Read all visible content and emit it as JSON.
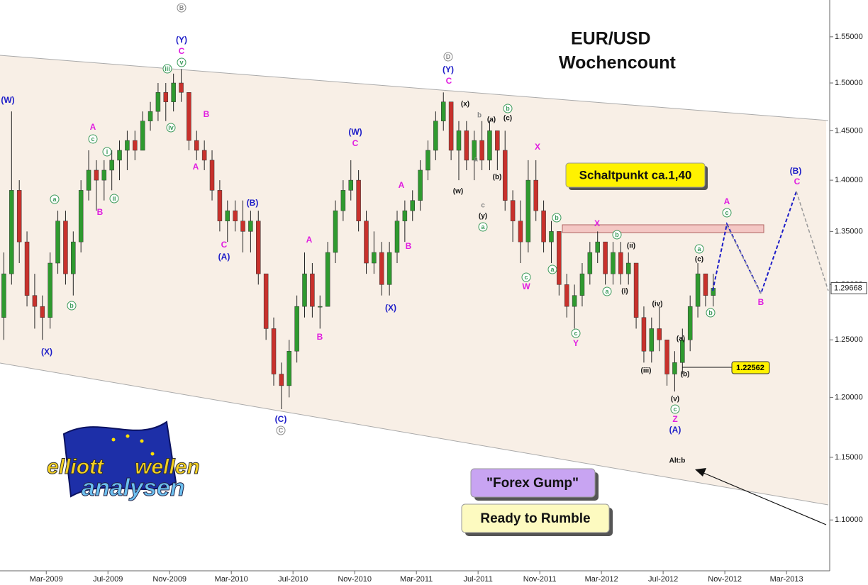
{
  "chart_data": {
    "type": "candlestick",
    "title": "EUR/USD",
    "subtitle": "Wochencount",
    "log_scale": true,
    "up_color": "#2f9a2f",
    "down_color": "#c8312c",
    "x": [
      0.25,
      0.75,
      1.25,
      1.75,
      2.25,
      2.75,
      3.25,
      3.75,
      4.25,
      4.75,
      5.25,
      5.75,
      6.25,
      6.75,
      7.25,
      7.75,
      8.25,
      8.75,
      9.25,
      9.75,
      10.25,
      10.75,
      11.25,
      11.75,
      12.25,
      12.75,
      13.25,
      13.75,
      14.25,
      14.75,
      15.25,
      15.75,
      16.25,
      16.75,
      17.25,
      17.75,
      18.25,
      18.75,
      19.25,
      19.75,
      20.25,
      20.75,
      21.25,
      21.75,
      22.25,
      22.75,
      23.25,
      23.75,
      24.25,
      24.75,
      25.25,
      25.75,
      26.25,
      26.75,
      27.25,
      27.75,
      28.25,
      28.75,
      29.25,
      29.75,
      30.25,
      30.75,
      31.25,
      31.75,
      32.25,
      32.75,
      33.25,
      33.75,
      34.25,
      34.75,
      35.25,
      35.75,
      36.25,
      36.75,
      37.25,
      37.75,
      38.25,
      38.75,
      39.25,
      39.75,
      40.25,
      40.75,
      41.25,
      41.75,
      42.25,
      42.75,
      43.25,
      43.75,
      44.25,
      44.75,
      45.25,
      45.75,
      46.25
    ],
    "open": [
      1.27,
      1.31,
      1.39,
      1.34,
      1.29,
      1.28,
      1.27,
      1.32,
      1.36,
      1.31,
      1.34,
      1.39,
      1.41,
      1.4,
      1.41,
      1.42,
      1.43,
      1.44,
      1.43,
      1.46,
      1.47,
      1.49,
      1.48,
      1.5,
      1.49,
      1.44,
      1.43,
      1.42,
      1.39,
      1.36,
      1.37,
      1.36,
      1.35,
      1.36,
      1.31,
      1.26,
      1.22,
      1.21,
      1.24,
      1.28,
      1.31,
      1.28,
      1.28,
      1.33,
      1.37,
      1.39,
      1.4,
      1.36,
      1.32,
      1.33,
      1.3,
      1.33,
      1.36,
      1.37,
      1.38,
      1.41,
      1.43,
      1.46,
      1.48,
      1.43,
      1.45,
      1.42,
      1.44,
      1.42,
      1.45,
      1.43,
      1.38,
      1.36,
      1.34,
      1.4,
      1.37,
      1.34,
      1.35,
      1.3,
      1.28,
      1.29,
      1.31,
      1.33,
      1.34,
      1.31,
      1.33,
      1.31,
      1.32,
      1.27,
      1.24,
      1.26,
      1.25,
      1.22,
      1.23,
      1.25,
      1.28,
      1.31,
      1.29
    ],
    "high": [
      1.33,
      1.47,
      1.4,
      1.35,
      1.31,
      1.29,
      1.33,
      1.37,
      1.37,
      1.35,
      1.4,
      1.43,
      1.42,
      1.42,
      1.43,
      1.44,
      1.45,
      1.45,
      1.47,
      1.48,
      1.5,
      1.5,
      1.51,
      1.515,
      1.49,
      1.45,
      1.44,
      1.43,
      1.4,
      1.38,
      1.38,
      1.38,
      1.37,
      1.37,
      1.31,
      1.27,
      1.23,
      1.25,
      1.29,
      1.33,
      1.32,
      1.29,
      1.34,
      1.38,
      1.4,
      1.42,
      1.41,
      1.37,
      1.35,
      1.34,
      1.34,
      1.37,
      1.38,
      1.39,
      1.42,
      1.44,
      1.47,
      1.49,
      1.48,
      1.46,
      1.46,
      1.45,
      1.46,
      1.46,
      1.45,
      1.45,
      1.39,
      1.38,
      1.42,
      1.42,
      1.38,
      1.36,
      1.35,
      1.31,
      1.3,
      1.32,
      1.34,
      1.35,
      1.34,
      1.34,
      1.34,
      1.33,
      1.32,
      1.28,
      1.27,
      1.28,
      1.25,
      1.24,
      1.26,
      1.29,
      1.32,
      1.31,
      1.31
    ],
    "low": [
      1.25,
      1.3,
      1.32,
      1.28,
      1.26,
      1.25,
      1.26,
      1.31,
      1.3,
      1.29,
      1.33,
      1.38,
      1.37,
      1.38,
      1.39,
      1.4,
      1.41,
      1.42,
      1.43,
      1.45,
      1.46,
      1.46,
      1.47,
      1.48,
      1.43,
      1.42,
      1.41,
      1.38,
      1.35,
      1.34,
      1.35,
      1.33,
      1.33,
      1.3,
      1.25,
      1.21,
      1.19,
      1.2,
      1.23,
      1.27,
      1.27,
      1.26,
      1.28,
      1.32,
      1.36,
      1.38,
      1.35,
      1.31,
      1.31,
      1.29,
      1.29,
      1.32,
      1.34,
      1.36,
      1.37,
      1.4,
      1.42,
      1.45,
      1.42,
      1.4,
      1.41,
      1.4,
      1.41,
      1.41,
      1.41,
      1.37,
      1.34,
      1.32,
      1.33,
      1.36,
      1.33,
      1.32,
      1.29,
      1.27,
      1.26,
      1.28,
      1.3,
      1.32,
      1.3,
      1.3,
      1.3,
      1.3,
      1.26,
      1.23,
      1.23,
      1.24,
      1.21,
      1.205,
      1.22,
      1.24,
      1.27,
      1.28,
      1.28
    ],
    "close": [
      1.31,
      1.39,
      1.34,
      1.29,
      1.28,
      1.27,
      1.32,
      1.36,
      1.31,
      1.34,
      1.39,
      1.41,
      1.4,
      1.41,
      1.42,
      1.43,
      1.44,
      1.43,
      1.46,
      1.47,
      1.49,
      1.48,
      1.5,
      1.49,
      1.44,
      1.43,
      1.42,
      1.39,
      1.36,
      1.37,
      1.36,
      1.35,
      1.36,
      1.31,
      1.26,
      1.22,
      1.21,
      1.24,
      1.28,
      1.31,
      1.28,
      1.28,
      1.33,
      1.37,
      1.39,
      1.4,
      1.36,
      1.32,
      1.33,
      1.3,
      1.33,
      1.36,
      1.37,
      1.38,
      1.41,
      1.43,
      1.46,
      1.48,
      1.43,
      1.45,
      1.42,
      1.44,
      1.42,
      1.45,
      1.43,
      1.38,
      1.36,
      1.34,
      1.4,
      1.37,
      1.34,
      1.35,
      1.3,
      1.28,
      1.29,
      1.31,
      1.33,
      1.34,
      1.31,
      1.33,
      1.31,
      1.32,
      1.27,
      1.24,
      1.26,
      1.25,
      1.22,
      1.23,
      1.25,
      1.28,
      1.31,
      1.29,
      1.29668
    ],
    "last_price": 1.29668,
    "xlim": [
      0,
      53.8
    ],
    "xticks": [
      {
        "value": 3,
        "label": "Mar-2009"
      },
      {
        "value": 7,
        "label": "Jul-2009"
      },
      {
        "value": 11,
        "label": "Nov-2009"
      },
      {
        "value": 15,
        "label": "Mar-2010"
      },
      {
        "value": 19,
        "label": "Jul-2010"
      },
      {
        "value": 23,
        "label": "Nov-2010"
      },
      {
        "value": 27,
        "label": "Mar-2011"
      },
      {
        "value": 31,
        "label": "Jul-2011"
      },
      {
        "value": 35,
        "label": "Nov-2011"
      },
      {
        "value": 39,
        "label": "Mar-2012"
      },
      {
        "value": 43,
        "label": "Jul-2012"
      },
      {
        "value": 47,
        "label": "Nov-2012"
      },
      {
        "value": 51,
        "label": "Mar-2013"
      }
    ],
    "ylim": [
      1.061,
      1.591
    ],
    "yticks": [
      {
        "value": 1.1,
        "label": "1.10000"
      },
      {
        "value": 1.15,
        "label": "1.15000"
      },
      {
        "value": 1.2,
        "label": "1.20000"
      },
      {
        "value": 1.25,
        "label": "1.25000"
      },
      {
        "value": 1.3,
        "label": "1.30000"
      },
      {
        "value": 1.35,
        "label": "1.35000"
      },
      {
        "value": 1.4,
        "label": "1.40000"
      },
      {
        "value": 1.45,
        "label": "1.45000"
      },
      {
        "value": 1.5,
        "label": "1.50000"
      },
      {
        "value": 1.55,
        "label": "1.55000"
      }
    ]
  },
  "wave_labels": [
    {
      "text": "(W)",
      "color": "#1c1cc8"
    },
    {
      "text": "(X)",
      "color": "#1c1cc8"
    },
    {
      "text": "a",
      "color": "#3a9a5a",
      "circled": true
    },
    {
      "text": "b",
      "color": "#3a9a5a",
      "circled": true
    },
    {
      "text": "A",
      "color": "#e01ee0"
    },
    {
      "text": "c",
      "color": "#3a9a5a",
      "circled": true
    },
    {
      "text": "i",
      "color": "#3a9a5a",
      "circled": true
    },
    {
      "text": "ii",
      "color": "#3a9a5a",
      "circled": true
    },
    {
      "text": "B",
      "color": "#e01ee0"
    },
    {
      "text": "B",
      "color": "#8a8a8a",
      "circled": true
    },
    {
      "text": "(Y)",
      "color": "#1c1cc8"
    },
    {
      "text": "C",
      "color": "#e01ee0"
    },
    {
      "text": "v",
      "color": "#3a9a5a",
      "circled": true
    },
    {
      "text": "iii",
      "color": "#3a9a5a",
      "circled": true
    },
    {
      "text": "iv",
      "color": "#3a9a5a",
      "circled": true
    },
    {
      "text": "B",
      "color": "#e01ee0"
    },
    {
      "text": "A",
      "color": "#e01ee0"
    },
    {
      "text": "(B)",
      "color": "#1c1cc8"
    },
    {
      "text": "C",
      "color": "#e01ee0"
    },
    {
      "text": "(A)",
      "color": "#1c1cc8"
    },
    {
      "text": "(C)",
      "color": "#1c1cc8"
    },
    {
      "text": "C",
      "color": "#8a8a8a",
      "circled": true
    },
    {
      "text": "A",
      "color": "#e01ee0"
    },
    {
      "text": "B",
      "color": "#e01ee0"
    },
    {
      "text": "(W)",
      "color": "#1c1cc8"
    },
    {
      "text": "C",
      "color": "#e01ee0"
    },
    {
      "text": "A",
      "color": "#e01ee0"
    },
    {
      "text": "B",
      "color": "#e01ee0"
    },
    {
      "text": "(X)",
      "color": "#1c1cc8"
    },
    {
      "text": "D",
      "color": "#8a8a8a",
      "circled": true
    },
    {
      "text": "(Y)",
      "color": "#1c1cc8"
    },
    {
      "text": "C",
      "color": "#e01ee0"
    },
    {
      "text": "(x)",
      "color": "#111111"
    },
    {
      "text": "b",
      "color": "#8a8a8a"
    },
    {
      "text": "(a)",
      "color": "#111111"
    },
    {
      "text": "b",
      "color": "#3a9a5a",
      "circled": true
    },
    {
      "text": "(c)",
      "color": "#111111"
    },
    {
      "text": "a",
      "color": "#8a8a8a"
    },
    {
      "text": "(b)",
      "color": "#111111"
    },
    {
      "text": "(w)",
      "color": "#111111"
    },
    {
      "text": "c",
      "color": "#8a8a8a"
    },
    {
      "text": "(y)",
      "color": "#111111"
    },
    {
      "text": "a",
      "color": "#3a9a5a",
      "circled": true
    },
    {
      "text": "X",
      "color": "#e01ee0"
    },
    {
      "text": "b",
      "color": "#3a9a5a",
      "circled": true
    },
    {
      "text": "c",
      "color": "#3a9a5a",
      "circled": true
    },
    {
      "text": "W",
      "color": "#e01ee0"
    },
    {
      "text": "a",
      "color": "#3a9a5a",
      "circled": true
    },
    {
      "text": "X",
      "color": "#e01ee0"
    },
    {
      "text": "b",
      "color": "#3a9a5a",
      "circled": true
    },
    {
      "text": "(ii)",
      "color": "#111111"
    },
    {
      "text": "a",
      "color": "#3a9a5a",
      "circled": true
    },
    {
      "text": "(i)",
      "color": "#111111"
    },
    {
      "text": "c",
      "color": "#3a9a5a",
      "circled": true
    },
    {
      "text": "Y",
      "color": "#e01ee0"
    },
    {
      "text": "(iv)",
      "color": "#111111"
    },
    {
      "text": "(iii)",
      "color": "#111111"
    },
    {
      "text": "(a)",
      "color": "#111111"
    },
    {
      "text": "(b)",
      "color": "#111111"
    },
    {
      "text": "(v)",
      "color": "#111111"
    },
    {
      "text": "c",
      "color": "#3a9a5a",
      "circled": true
    },
    {
      "text": "Z",
      "color": "#e01ee0"
    },
    {
      "text": "(A)",
      "color": "#1c1cc8"
    },
    {
      "text": "a",
      "color": "#3a9a5a",
      "circled": true
    },
    {
      "text": "(c)",
      "color": "#111111"
    },
    {
      "text": "b",
      "color": "#3a9a5a",
      "circled": true
    },
    {
      "text": "A",
      "color": "#e01ee0"
    },
    {
      "text": "c",
      "color": "#3a9a5a",
      "circled": true
    },
    {
      "text": "B",
      "color": "#e01ee0"
    },
    {
      "text": "(B)",
      "color": "#1c1cc8"
    },
    {
      "text": "C",
      "color": "#e01ee0"
    },
    {
      "text": "Alt:b",
      "color": "#111111"
    }
  ],
  "annotations": {
    "pivot": "Schaltpunkt ca.1,40",
    "level": "1.22562",
    "slogan_1": "\"Forex Gump\"",
    "slogan_2": "Ready to Rumble"
  },
  "logo": {
    "word_1": "elliott",
    "word_2": "wellen",
    "word_3": "analysen"
  }
}
